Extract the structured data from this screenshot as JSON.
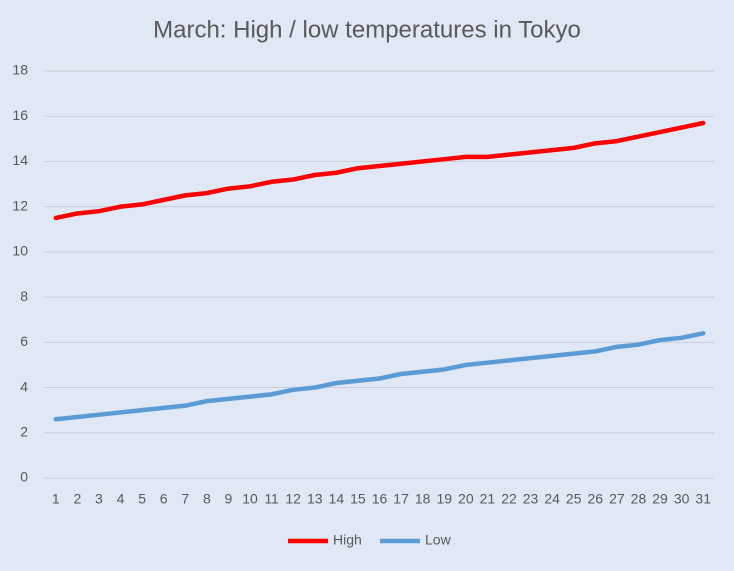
{
  "chart_data": {
    "type": "line",
    "title": "March: High / low temperatures in Tokyo",
    "categories": [
      "1",
      "2",
      "3",
      "4",
      "5",
      "6",
      "7",
      "8",
      "9",
      "10",
      "11",
      "12",
      "13",
      "14",
      "15",
      "16",
      "17",
      "18",
      "19",
      "20",
      "21",
      "22",
      "23",
      "24",
      "25",
      "26",
      "27",
      "28",
      "29",
      "30",
      "31"
    ],
    "series": [
      {
        "name": "High",
        "color": "#ff0000",
        "values": [
          11.5,
          11.7,
          11.8,
          12.0,
          12.1,
          12.3,
          12.5,
          12.6,
          12.8,
          12.9,
          13.1,
          13.2,
          13.4,
          13.5,
          13.7,
          13.8,
          13.9,
          14.0,
          14.1,
          14.2,
          14.2,
          14.3,
          14.4,
          14.5,
          14.6,
          14.8,
          14.9,
          15.1,
          15.3,
          15.5,
          15.7
        ]
      },
      {
        "name": "Low",
        "color": "#5b9bd5",
        "values": [
          2.6,
          2.7,
          2.8,
          2.9,
          3.0,
          3.1,
          3.2,
          3.4,
          3.5,
          3.6,
          3.7,
          3.9,
          4.0,
          4.2,
          4.3,
          4.4,
          4.6,
          4.7,
          4.8,
          5.0,
          5.1,
          5.2,
          5.3,
          5.4,
          5.5,
          5.6,
          5.8,
          5.9,
          6.1,
          6.2,
          6.4
        ]
      }
    ],
    "ylim": [
      0,
      18
    ],
    "yticks": [
      0,
      2,
      4,
      6,
      8,
      10,
      12,
      14,
      16,
      18
    ],
    "grid": true,
    "legend": "bottom"
  }
}
